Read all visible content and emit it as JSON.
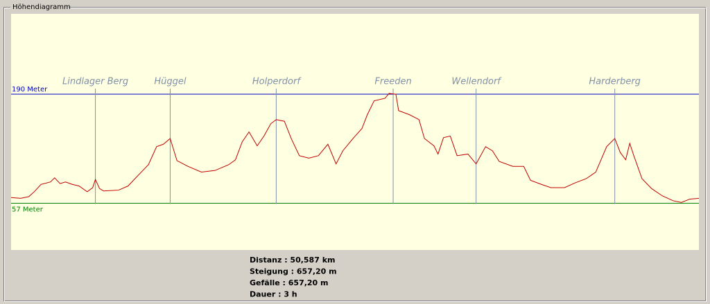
{
  "window": {
    "title": "Höhendiagramm"
  },
  "chart_data": {
    "type": "line",
    "x": [
      0,
      0.7,
      1.3,
      1.7,
      2.2,
      2.9,
      3.2,
      3.6,
      4.0,
      4.5,
      5.0,
      5.6,
      6.0,
      6.2,
      6.5,
      6.8,
      7.9,
      8.6,
      9.4,
      10.1,
      10.7,
      11.2,
      11.7,
      12.2,
      13.0,
      14.0,
      15.0,
      16.0,
      16.5,
      17.0,
      17.5,
      18.1,
      18.6,
      19.1,
      19.5,
      20.1,
      20.6,
      21.2,
      21.9,
      22.6,
      23.3,
      23.9,
      24.4,
      25.2,
      25.8,
      26.2,
      26.7,
      27.5,
      27.8,
      28.3,
      28.5,
      29.3,
      30.0,
      30.4,
      31.1,
      31.4,
      31.8,
      32.3,
      32.8,
      33.6,
      34.2,
      34.9,
      35.4,
      35.9,
      36.9,
      37.7,
      38.2,
      39.0,
      39.7,
      40.7,
      41.5,
      42.3,
      43.0,
      43.8,
      44.4,
      44.8,
      45.2,
      45.5,
      45.8,
      46.4,
      47.1,
      47.9,
      48.7,
      49.3,
      49.9,
      50.587
    ],
    "series": [
      {
        "color": "#c00000",
        "values": [
          64,
          63,
          65,
          71,
          80,
          83,
          88,
          81,
          83,
          80,
          78,
          71,
          76,
          86,
          75,
          72,
          73,
          78,
          92,
          104,
          126,
          129,
          136,
          109,
          102,
          95,
          97,
          104,
          110,
          132,
          144,
          127,
          139,
          154,
          159,
          157,
          136,
          115,
          112,
          115,
          129,
          105,
          121,
          137,
          148,
          165,
          182,
          185,
          191,
          190,
          170,
          165,
          159,
          136,
          127,
          117,
          137,
          139,
          115,
          117,
          105,
          126,
          121,
          108,
          102,
          102,
          85,
          80,
          76,
          76,
          82,
          87,
          95,
          126,
          136,
          119,
          110,
          130,
          115,
          87,
          75,
          66,
          60,
          58,
          62,
          63
        ]
      }
    ],
    "xlim": [
      0,
      50.587
    ],
    "ylim": [
      0,
      288
    ],
    "ref_lines": [
      {
        "value": 190,
        "label": "190 Meter",
        "color": "#0000c0"
      },
      {
        "value": 57,
        "label": "57 Meter",
        "color": "#008000"
      }
    ],
    "annotations": [
      {
        "x": 6.2,
        "label": "Lindlager Berg"
      },
      {
        "x": 11.7,
        "label": "Hüggel"
      },
      {
        "x": 19.5,
        "label": "Holperdorf"
      },
      {
        "x": 28.1,
        "label": "Freeden"
      },
      {
        "x": 34.2,
        "label": "Wellendorf"
      },
      {
        "x": 44.4,
        "label": "Harderberg"
      }
    ]
  },
  "summary": [
    "Distanz : 50,587 km",
    "Steigung : 657,20 m",
    "Gefälle : 657,20 m",
    "Dauer : 3 h"
  ]
}
